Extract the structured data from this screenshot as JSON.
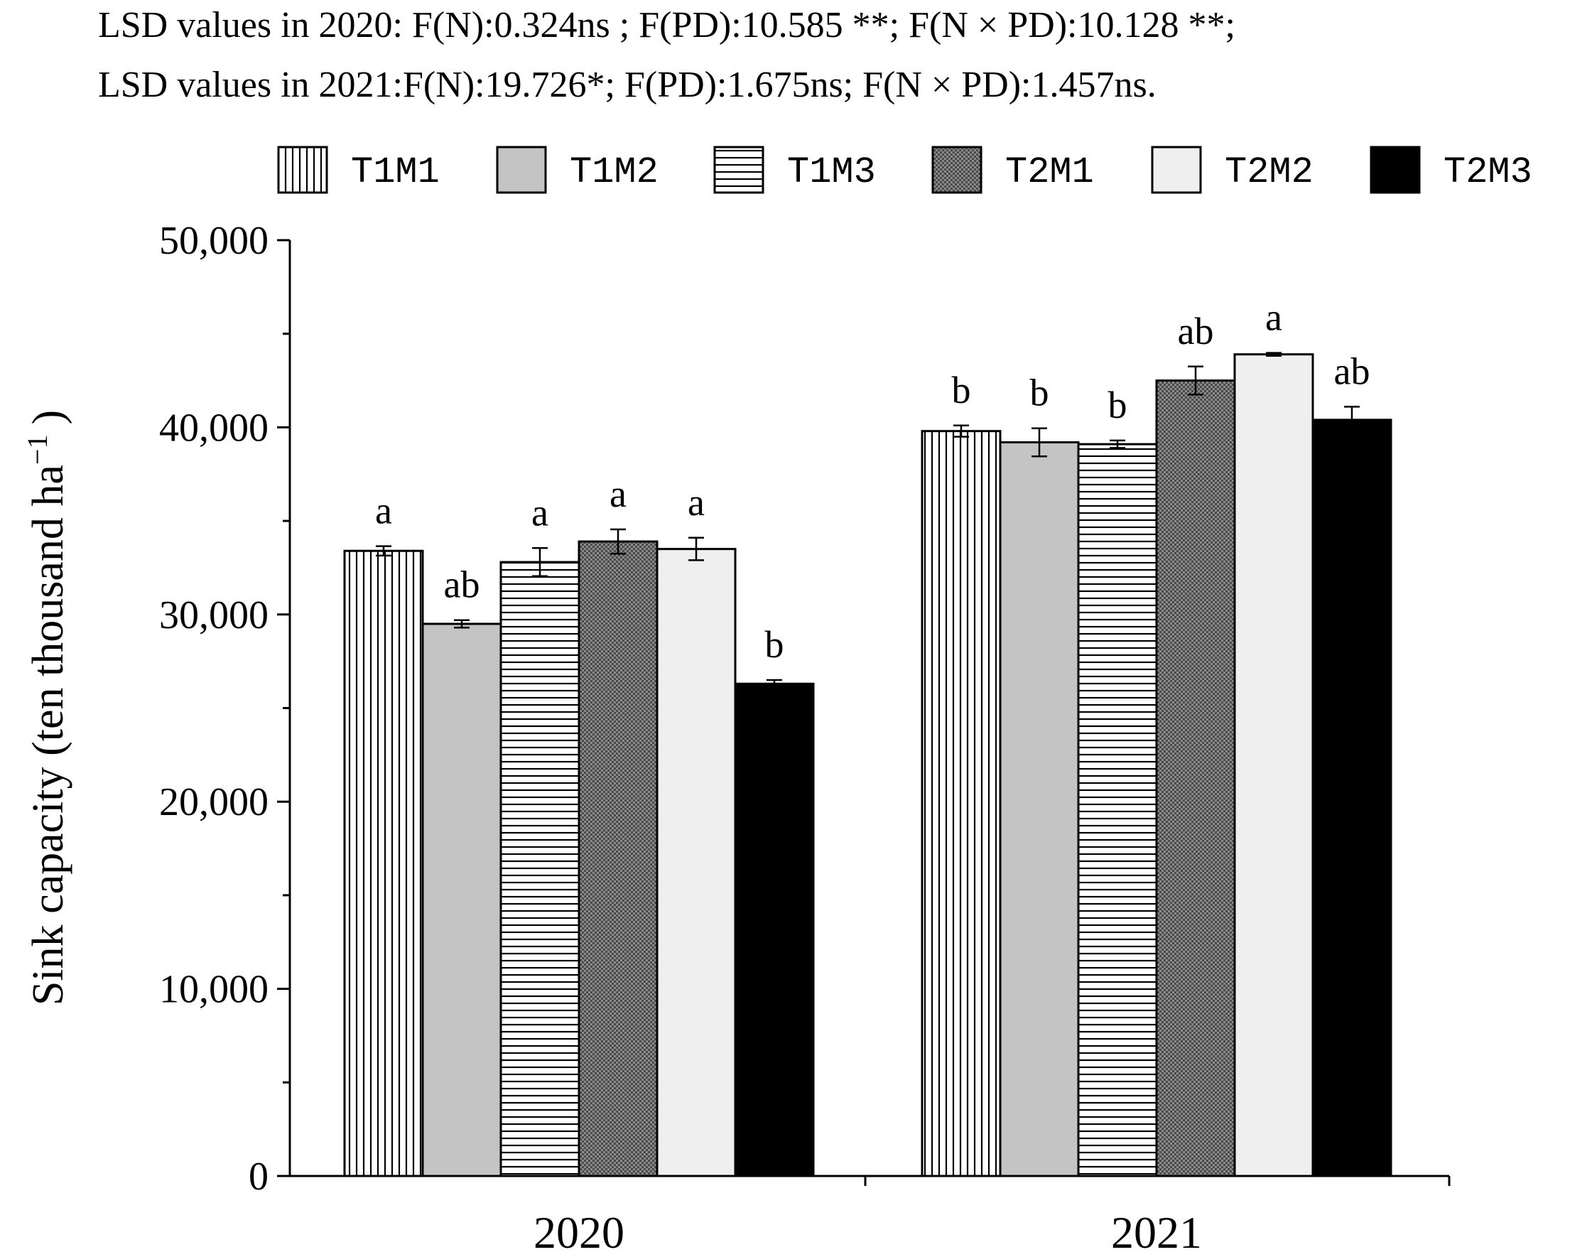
{
  "chart_data": {
    "type": "bar",
    "title_lines": [
      "LSD values in 2020: F(N):0.324ns ; F(PD):10.585 **; F(N × PD):10.128 **;",
      "LSD values in 2021:F(N):19.726*; F(PD):1.675ns; F(N × PD):1.457ns."
    ],
    "ylabel_main": "Sink capacity (ten thousand ha",
    "ylabel_sup": "−1",
    "ylabel_close": ")",
    "xlabel": "",
    "ylim": [
      0,
      50000
    ],
    "y_ticks": [
      0,
      10000,
      20000,
      30000,
      40000,
      50000
    ],
    "y_tick_labels": [
      "0",
      "10,000",
      "20,000",
      "30,000",
      "40,000",
      "50,000"
    ],
    "categories": [
      "2020",
      "2021"
    ],
    "series": [
      {
        "name": "T1M1",
        "pattern": "vertical",
        "values": [
          33400,
          39800
        ],
        "errors": [
          250,
          300
        ],
        "letters": [
          "a",
          "b"
        ]
      },
      {
        "name": "T1M2",
        "pattern": "gray",
        "values": [
          29500,
          39200
        ],
        "errors": [
          200,
          750
        ],
        "letters": [
          "ab",
          "b"
        ]
      },
      {
        "name": "T1M3",
        "pattern": "horizontal",
        "values": [
          32800,
          39100
        ],
        "errors": [
          750,
          200
        ],
        "letters": [
          "a",
          "b"
        ]
      },
      {
        "name": "T2M1",
        "pattern": "dots",
        "values": [
          33900,
          42500
        ],
        "errors": [
          650,
          750
        ],
        "letters": [
          "a",
          "ab"
        ]
      },
      {
        "name": "T2M2",
        "pattern": "lightgray",
        "values": [
          33500,
          43900
        ],
        "errors": [
          600,
          80
        ],
        "letters": [
          "a",
          "a"
        ]
      },
      {
        "name": "T2M3",
        "pattern": "black",
        "values": [
          26300,
          40400
        ],
        "errors": [
          200,
          700
        ],
        "letters": [
          "b",
          "ab"
        ]
      }
    ],
    "legend_position": "top",
    "grid": false
  }
}
